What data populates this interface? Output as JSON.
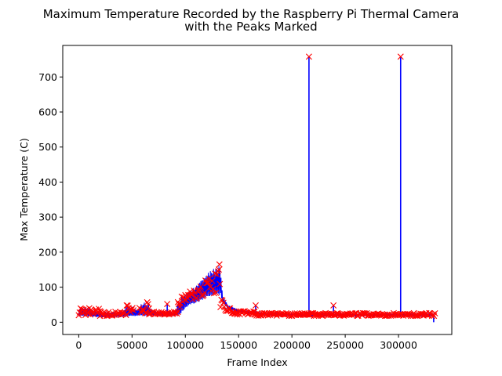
{
  "chart_data": {
    "type": "line",
    "title_lines": [
      "Maximum Temperature Recorded by the Raspberry Pi Thermal Camera",
      "with the Peaks Marked"
    ],
    "xlabel": "Frame Index",
    "ylabel": "Max Temperature (C)",
    "xlim": [
      -15000,
      350000
    ],
    "ylim": [
      -35,
      790
    ],
    "x_ticks": [
      0,
      50000,
      100000,
      150000,
      200000,
      250000,
      300000
    ],
    "x_tick_labels": [
      "0",
      "50000",
      "100000",
      "150000",
      "200000",
      "250000",
      "300000"
    ],
    "y_ticks": [
      0,
      100,
      200,
      300,
      400,
      500,
      600,
      700
    ],
    "y_tick_labels": [
      "0",
      "100",
      "200",
      "300",
      "400",
      "500",
      "600",
      "700"
    ],
    "grid": false,
    "series": [
      {
        "color": "#0000ff",
        "profile": [
          {
            "x": 0,
            "min": 18,
            "max": 42
          },
          {
            "x": 10000,
            "min": 15,
            "max": 42
          },
          {
            "x": 20000,
            "min": 14,
            "max": 30
          },
          {
            "x": 30000,
            "min": 14,
            "max": 28
          },
          {
            "x": 40000,
            "min": 14,
            "max": 30
          },
          {
            "x": 45000,
            "min": 15,
            "max": 45
          },
          {
            "x": 50000,
            "min": 16,
            "max": 45
          },
          {
            "x": 55000,
            "min": 18,
            "max": 38
          },
          {
            "x": 60000,
            "min": 18,
            "max": 58
          },
          {
            "x": 65000,
            "min": 18,
            "max": 55
          },
          {
            "x": 70000,
            "min": 18,
            "max": 32
          },
          {
            "x": 80000,
            "min": 18,
            "max": 30
          },
          {
            "x": 90000,
            "min": 18,
            "max": 30
          },
          {
            "x": 95000,
            "min": 20,
            "max": 70
          },
          {
            "x": 100000,
            "min": 40,
            "max": 85
          },
          {
            "x": 105000,
            "min": 50,
            "max": 90
          },
          {
            "x": 110000,
            "min": 55,
            "max": 110
          },
          {
            "x": 115000,
            "min": 60,
            "max": 125
          },
          {
            "x": 120000,
            "min": 70,
            "max": 140
          },
          {
            "x": 125000,
            "min": 75,
            "max": 150
          },
          {
            "x": 130000,
            "min": 80,
            "max": 160
          },
          {
            "x": 133000,
            "min": 75,
            "max": 162
          },
          {
            "x": 135000,
            "min": 55,
            "max": 75
          },
          {
            "x": 140000,
            "min": 38,
            "max": 50
          },
          {
            "x": 150000,
            "min": 28,
            "max": 36
          },
          {
            "x": 165000,
            "min": 22,
            "max": 30
          },
          {
            "x": 180000,
            "min": 20,
            "max": 27
          },
          {
            "x": 200000,
            "min": 18,
            "max": 26
          },
          {
            "x": 250000,
            "min": 17,
            "max": 25
          },
          {
            "x": 300000,
            "min": 17,
            "max": 25
          },
          {
            "x": 333000,
            "min": 17,
            "max": 25
          }
        ],
        "spikes": [
          {
            "x": 83000,
            "y": 52
          },
          {
            "x": 166000,
            "y": 48
          },
          {
            "x": 216000,
            "y": 758
          },
          {
            "x": 239000,
            "y": 48
          },
          {
            "x": 302000,
            "y": 758
          },
          {
            "x": 333000,
            "y": 0
          }
        ]
      }
    ],
    "peak_markers": {
      "color": "#ff0000",
      "marker": "x",
      "points": [
        {
          "x": 216000,
          "y": 758
        },
        {
          "x": 302000,
          "y": 758
        },
        {
          "x": 83000,
          "y": 52
        },
        {
          "x": 166000,
          "y": 48
        },
        {
          "x": 239000,
          "y": 48
        },
        {
          "x": 132000,
          "y": 165
        }
      ],
      "dense_bands": [
        {
          "x_start": 0,
          "x_end": 20000,
          "y_low": 20,
          "y_high": 42
        },
        {
          "x_start": 20000,
          "x_end": 45000,
          "y_low": 18,
          "y_high": 30
        },
        {
          "x_start": 45000,
          "x_end": 52000,
          "y_low": 22,
          "y_high": 48
        },
        {
          "x_start": 57000,
          "x_end": 66000,
          "y_low": 22,
          "y_high": 58
        },
        {
          "x_start": 66000,
          "x_end": 93000,
          "y_low": 22,
          "y_high": 30
        },
        {
          "x_start": 93000,
          "x_end": 100000,
          "y_low": 40,
          "y_high": 80
        },
        {
          "x_start": 100000,
          "x_end": 133000,
          "y_low": 60,
          "y_high": 160
        },
        {
          "x_start": 133000,
          "x_end": 145000,
          "y_low": 30,
          "y_high": 70
        },
        {
          "x_start": 145000,
          "x_end": 165000,
          "y_low": 22,
          "y_high": 32
        },
        {
          "x_start": 165000,
          "x_end": 335000,
          "y_low": 18,
          "y_high": 26
        }
      ]
    }
  }
}
